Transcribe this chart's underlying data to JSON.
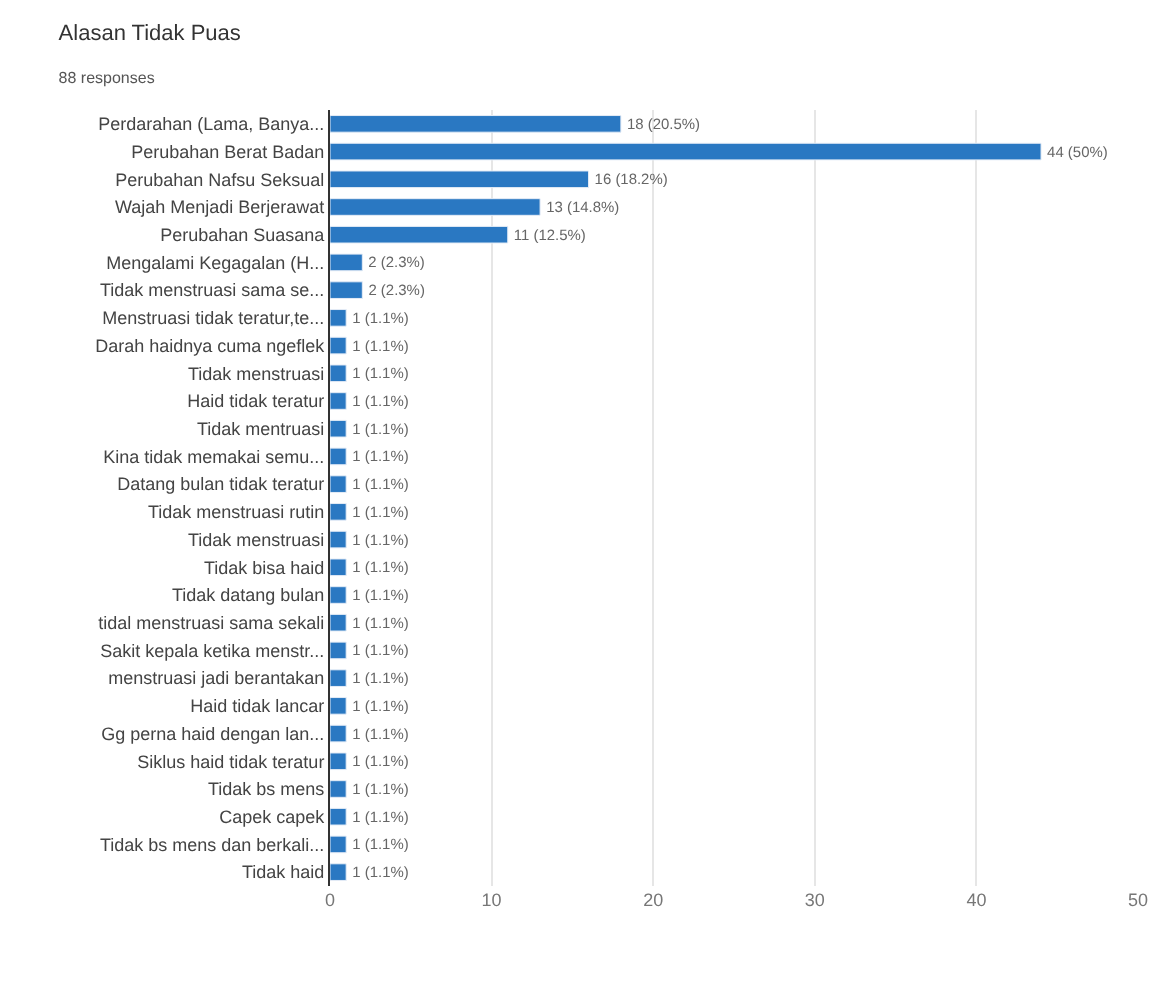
{
  "chart_data": {
    "type": "bar",
    "title": "Alasan Tidak Puas",
    "subtitle": "88 responses",
    "orientation": "horizontal",
    "categories": [
      "Perdarahan (Lama, Banya...",
      "Perubahan Berat Badan",
      "Perubahan Nafsu Seksual",
      "Wajah Menjadi Berjerawat",
      "Perubahan Suasana",
      "Mengalami Kegagalan (H...",
      "Tidak menstruasi sama se...",
      "Menstruasi tidak teratur,te...",
      "Darah haidnya cuma ngeflek",
      "Tidak menstruasi",
      "Haid tidak teratur",
      "Tidak mentruasi",
      "Kina tidak memakai semu...",
      "Datang bulan tidak teratur",
      "Tidak menstruasi rutin",
      "Tidak menstruasi",
      "Tidak bisa haid",
      "Tidak datang bulan",
      "tidal menstruasi sama sekali",
      "Sakit kepala ketika menstr...",
      "menstruasi jadi berantakan",
      "Haid tidak lancar",
      "Gg perna haid dengan lan...",
      "Siklus haid tidak teratur",
      "Tidak bs mens",
      "Capek capek",
      "Tidak bs mens dan berkali...",
      "Tidak haid"
    ],
    "values": [
      18,
      44,
      16,
      13,
      11,
      2,
      2,
      1,
      1,
      1,
      1,
      1,
      1,
      1,
      1,
      1,
      1,
      1,
      1,
      1,
      1,
      1,
      1,
      1,
      1,
      1,
      1,
      1
    ],
    "value_labels": [
      "18 (20.5%)",
      "44 (50%)",
      "16 (18.2%)",
      "13 (14.8%)",
      "11 (12.5%)",
      "2 (2.3%)",
      "2 (2.3%)",
      "1 (1.1%)",
      "1 (1.1%)",
      "1 (1.1%)",
      "1 (1.1%)",
      "1 (1.1%)",
      "1 (1.1%)",
      "1 (1.1%)",
      "1 (1.1%)",
      "1 (1.1%)",
      "1 (1.1%)",
      "1 (1.1%)",
      "1 (1.1%)",
      "1 (1.1%)",
      "1 (1.1%)",
      "1 (1.1%)",
      "1 (1.1%)",
      "1 (1.1%)",
      "1 (1.1%)",
      "1 (1.1%)",
      "1 (1.1%)",
      "1 (1.1%)"
    ],
    "color": "#2a78c2",
    "xlim": [
      0,
      50
    ],
    "xticks": [
      0,
      10,
      20,
      30,
      40,
      50
    ],
    "grid": "x",
    "legend": false
  }
}
